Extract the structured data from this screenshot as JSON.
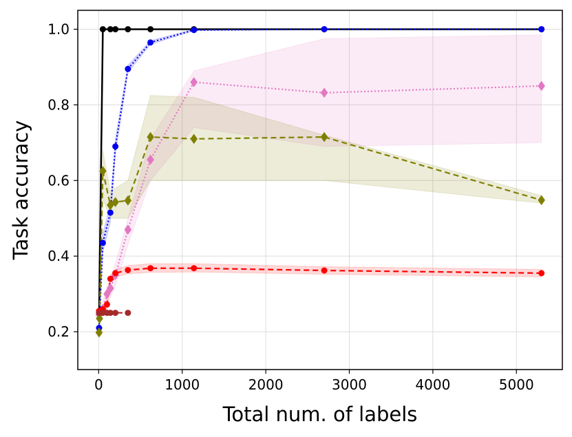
{
  "chart_data": {
    "type": "line",
    "xlabel": "Total num. of labels",
    "ylabel": "Task accuracy",
    "xlim": [
      -250,
      5550
    ],
    "ylim": [
      0.1,
      1.05
    ],
    "xticks": [
      0,
      1000,
      2000,
      3000,
      4000,
      5000
    ],
    "yticks": [
      0.2,
      0.4,
      0.6,
      0.8,
      1.0
    ],
    "xtick_labels": [
      "0",
      "1000",
      "2000",
      "3000",
      "4000",
      "5000"
    ],
    "ytick_labels": [
      "0.2",
      "0.4",
      "0.6",
      "0.8",
      "1.0"
    ],
    "grid": true,
    "series": [
      {
        "color": "#000000",
        "dash": "solid",
        "marker": "circle",
        "x": [
          5,
          50,
          140,
          200,
          350,
          620,
          1140,
          2700,
          5300
        ],
        "y": [
          0.25,
          1.0,
          1.0,
          1.0,
          1.0,
          1.0,
          1.0,
          1.0,
          1.0
        ]
      },
      {
        "color": "#0000ee",
        "dash": "dotted",
        "marker": "circle",
        "x": [
          5,
          50,
          140,
          200,
          350,
          620,
          1140,
          2700,
          5300
        ],
        "y": [
          0.21,
          0.435,
          0.515,
          0.69,
          0.895,
          0.965,
          0.998,
          1.0,
          1.0
        ],
        "band_low": [
          0.2,
          0.41,
          0.49,
          0.67,
          0.885,
          0.96,
          0.996,
          1.0,
          1.0
        ],
        "band_high": [
          0.23,
          0.46,
          0.54,
          0.71,
          0.905,
          0.97,
          1.0,
          1.0,
          1.0
        ]
      },
      {
        "color": "#e377c2",
        "dash": "dotted",
        "marker": "diamond",
        "x": [
          5,
          50,
          100,
          140,
          200,
          350,
          620,
          1140,
          2700,
          5300
        ],
        "y": [
          0.245,
          0.26,
          0.3,
          0.315,
          0.35,
          0.47,
          0.655,
          0.86,
          0.832,
          0.85
        ],
        "band_low": [
          0.24,
          0.25,
          0.28,
          0.29,
          0.32,
          0.43,
          0.6,
          0.74,
          0.69,
          0.7
        ],
        "band_high": [
          0.25,
          0.28,
          0.32,
          0.34,
          0.38,
          0.5,
          0.71,
          0.89,
          0.975,
          0.985
        ]
      },
      {
        "color": "#808000",
        "dash": "dashed",
        "marker": "diamond",
        "x": [
          5,
          10,
          50,
          140,
          200,
          350,
          620,
          1140,
          2700,
          5300
        ],
        "y": [
          0.198,
          0.235,
          0.625,
          0.535,
          0.543,
          0.547,
          0.715,
          0.71,
          0.715,
          0.548
        ],
        "band_low": [
          0.19,
          0.2,
          0.55,
          0.5,
          0.5,
          0.5,
          0.6,
          0.6,
          0.6,
          0.54
        ],
        "band_high": [
          0.21,
          0.27,
          0.68,
          0.57,
          0.58,
          0.6,
          0.825,
          0.82,
          0.72,
          0.56
        ]
      },
      {
        "color": "#ff0000",
        "dash": "dashed",
        "marker": "circle",
        "x": [
          5,
          50,
          100,
          140,
          200,
          350,
          620,
          1140,
          2700,
          5300
        ],
        "y": [
          0.255,
          0.26,
          0.272,
          0.34,
          0.355,
          0.363,
          0.368,
          0.368,
          0.362,
          0.355
        ],
        "band_low": [
          0.25,
          0.25,
          0.26,
          0.33,
          0.345,
          0.353,
          0.357,
          0.358,
          0.352,
          0.345
        ],
        "band_high": [
          0.26,
          0.27,
          0.285,
          0.35,
          0.365,
          0.375,
          0.38,
          0.38,
          0.372,
          0.365
        ]
      },
      {
        "color": "#a52a2a",
        "dash": "dashed",
        "marker": "circle",
        "x": [
          5,
          50,
          100,
          140,
          200,
          350
        ],
        "y": [
          0.25,
          0.25,
          0.25,
          0.25,
          0.25,
          0.25
        ]
      }
    ]
  }
}
